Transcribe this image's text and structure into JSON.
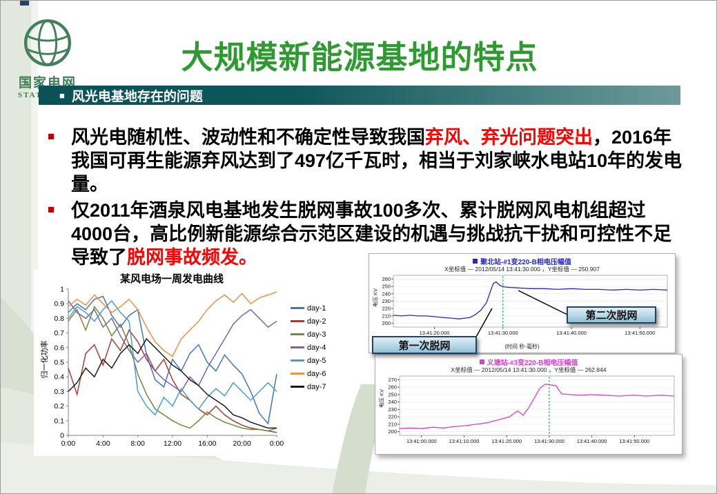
{
  "slide": {
    "logo": {
      "cn": "国家电网",
      "en": "STATE GRID"
    },
    "title": "大规模新能源基地的特点",
    "section": {
      "marker": "■",
      "label": "风光电基地存在的问题"
    },
    "bullets": [
      {
        "marker": "■",
        "segments": [
          {
            "text": "风光电随机性、波动性和不确定性导致我国",
            "red": false
          },
          {
            "text": "弃风、弃光问题突出",
            "red": true
          },
          {
            "text": "，2016年我国可再生能源弃风达到了497亿千瓦时，相当于刘家峡水电站10年的发电量。",
            "red": false
          }
        ]
      },
      {
        "marker": "■",
        "segments": [
          {
            "text": "仅2011年酒泉风电基地发生脱网事故100多次、累计脱网风电机组超过4000台，高比例新能源综合示范区建设的机遇与挑战抗干扰和可控性不足导致了",
            "red": false
          },
          {
            "text": "脱网事故频发。",
            "red": true
          }
        ]
      }
    ],
    "callouts": {
      "first": "第一次脱网",
      "second": "第二次脱网"
    },
    "colors": {
      "title_green": "#2f9a32",
      "banner_teal": "#0b5256",
      "highlight_red": "#fe0000",
      "bullet_red": "#c00000"
    }
  },
  "chart_data": [
    {
      "id": "wind",
      "type": "line",
      "title": "某风电场一周发电曲线",
      "ylabel": "归一化功率",
      "ylim": [
        0,
        1
      ],
      "y_ticks": [
        0,
        0.1,
        0.2,
        0.3,
        0.4,
        0.5,
        0.6,
        0.7,
        0.8,
        0.9,
        1
      ],
      "x_ticks": [
        "0:00",
        "4:00",
        "8:00",
        "12:00",
        "16:00",
        "20:00",
        "0:00"
      ],
      "legend_position": "right",
      "series": [
        {
          "name": "day-1",
          "color": "#4472c4",
          "values": [
            0.84,
            0.9,
            0.86,
            0.93,
            0.95,
            0.82,
            0.74,
            0.82,
            0.86,
            0.55,
            0.38,
            0.33,
            0.52,
            0.44,
            0.56,
            0.62,
            0.5,
            0.44,
            0.55,
            0.48,
            0.42,
            0.3,
            0.15,
            0.08,
            0.42
          ]
        },
        {
          "name": "day-2",
          "color": "#a33e36",
          "values": [
            0.46,
            0.28,
            0.56,
            0.62,
            0.48,
            0.66,
            0.58,
            0.72,
            0.64,
            0.52,
            0.44,
            0.52,
            0.38,
            0.28,
            0.24,
            0.18,
            0.14,
            0.2,
            0.14,
            0.1,
            0.07,
            0.05,
            0.04,
            0.03,
            0.02
          ]
        },
        {
          "name": "day-3",
          "color": "#70883b",
          "values": [
            0.78,
            0.86,
            0.72,
            0.88,
            0.8,
            0.68,
            0.76,
            0.62,
            0.42,
            0.28,
            0.18,
            0.14,
            0.1,
            0.07,
            0.05,
            0.1,
            0.16,
            0.12,
            0.09,
            0.07,
            0.05,
            0.04,
            0.04,
            0.03,
            0.05
          ]
        },
        {
          "name": "day-4",
          "color": "#7d62a0",
          "values": [
            0.92,
            0.84,
            0.8,
            0.86,
            0.74,
            0.8,
            0.68,
            0.58,
            0.5,
            0.56,
            0.44,
            0.38,
            0.34,
            0.3,
            0.4,
            0.34,
            0.46,
            0.56,
            0.66,
            0.76,
            0.82,
            0.86,
            0.8,
            0.74,
            0.78
          ]
        },
        {
          "name": "day-5",
          "color": "#44a0c4",
          "values": [
            0.8,
            0.88,
            0.84,
            0.78,
            0.86,
            0.92,
            0.84,
            0.78,
            0.3,
            0.2,
            0.14,
            0.26,
            0.2,
            0.32,
            0.24,
            0.18,
            0.26,
            0.32,
            0.27,
            0.36,
            0.3,
            0.24,
            0.3,
            0.36,
            0.3
          ]
        },
        {
          "name": "day-6",
          "color": "#ed9144",
          "values": [
            0.88,
            0.93,
            0.89,
            0.96,
            0.9,
            0.84,
            0.88,
            0.93,
            0.86,
            0.74,
            0.64,
            0.58,
            0.54,
            0.66,
            0.72,
            0.78,
            0.86,
            0.92,
            0.96,
            0.91,
            0.97,
            0.9,
            0.94,
            0.96,
            0.98
          ]
        },
        {
          "name": "day-7",
          "color": "#1a1a1a",
          "values": [
            0.3,
            0.36,
            0.46,
            0.4,
            0.52,
            0.46,
            0.56,
            0.62,
            0.56,
            0.66,
            0.6,
            0.54,
            0.48,
            0.44,
            0.38,
            0.34,
            0.28,
            0.24,
            0.2,
            0.14,
            0.12,
            0.09,
            0.07,
            0.05,
            0.05
          ]
        }
      ]
    },
    {
      "id": "scope1",
      "type": "line",
      "legend": "聚北站-#1变220-B相电压幅值",
      "coords": "X坐标值 —  2012/05/14 13:41:30.000 ，Y坐标值 —  250.907",
      "ylabel": "电压 KV",
      "xlabel": "(时间 秒-毫秒)",
      "color": "#2626cf",
      "marker_color": "#00a651",
      "marker_x": 0.4,
      "ylim": [
        195,
        265
      ],
      "y_ticks": [
        200,
        210,
        220,
        230,
        240,
        250,
        260
      ],
      "x_ticks": [
        "13:41:20.000",
        "13:41:30.000",
        "13:41:40.000",
        "13:41:50.000"
      ],
      "x_tick_pos": [
        0.15,
        0.4,
        0.65,
        0.9
      ],
      "points": [
        [
          0,
          211
        ],
        [
          0.03,
          210
        ],
        [
          0.06,
          211
        ],
        [
          0.09,
          210
        ],
        [
          0.12,
          210
        ],
        [
          0.15,
          209
        ],
        [
          0.18,
          208
        ],
        [
          0.21,
          207
        ],
        [
          0.24,
          206
        ],
        [
          0.26,
          207
        ],
        [
          0.28,
          208
        ],
        [
          0.3,
          212
        ],
        [
          0.32,
          218
        ],
        [
          0.34,
          228
        ],
        [
          0.355,
          244
        ],
        [
          0.365,
          254
        ],
        [
          0.375,
          256
        ],
        [
          0.39,
          251
        ],
        [
          0.41,
          249
        ],
        [
          0.45,
          248
        ],
        [
          0.5,
          247
        ],
        [
          0.55,
          247
        ],
        [
          0.6,
          246
        ],
        [
          0.65,
          247
        ],
        [
          0.7,
          246
        ],
        [
          0.75,
          246
        ],
        [
          0.8,
          245
        ],
        [
          0.85,
          246
        ],
        [
          0.9,
          245
        ],
        [
          0.95,
          246
        ],
        [
          1,
          245
        ]
      ]
    },
    {
      "id": "scope2",
      "type": "line",
      "legend": "义塘站-#3变220-B相电压幅值",
      "coords": "X坐标值 —  2012/05/14 13:41:30.000 ，Y坐标值 —  262.844",
      "ylabel": "电压 KV",
      "xlabel": "",
      "color": "#e23ad0",
      "marker_color": "#00a651",
      "marker_x": 0.545,
      "ylim": [
        195,
        275
      ],
      "y_ticks": [
        200,
        210,
        220,
        230,
        240,
        250,
        260,
        270
      ],
      "x_ticks": [
        "13:41:00.000",
        "13:41:10.000",
        "13:41:20.000",
        "13:41:30.000",
        "13:41:40.000",
        "13:41:50.000"
      ],
      "x_tick_pos": [
        0.08,
        0.235,
        0.39,
        0.545,
        0.7,
        0.855
      ],
      "points": [
        [
          0,
          204
        ],
        [
          0.04,
          205
        ],
        [
          0.08,
          204
        ],
        [
          0.12,
          206
        ],
        [
          0.16,
          205
        ],
        [
          0.2,
          207
        ],
        [
          0.24,
          208
        ],
        [
          0.28,
          210
        ],
        [
          0.32,
          212
        ],
        [
          0.36,
          216
        ],
        [
          0.4,
          220
        ],
        [
          0.43,
          228
        ],
        [
          0.45,
          222
        ],
        [
          0.47,
          232
        ],
        [
          0.49,
          245
        ],
        [
          0.51,
          258
        ],
        [
          0.53,
          264
        ],
        [
          0.55,
          263
        ],
        [
          0.57,
          262
        ],
        [
          0.58,
          256
        ],
        [
          0.59,
          251
        ],
        [
          0.62,
          250
        ],
        [
          0.66,
          249
        ],
        [
          0.7,
          250
        ],
        [
          0.75,
          249
        ],
        [
          0.8,
          248
        ],
        [
          0.85,
          249
        ],
        [
          0.9,
          248
        ],
        [
          0.95,
          249
        ],
        [
          1,
          248
        ]
      ]
    }
  ]
}
